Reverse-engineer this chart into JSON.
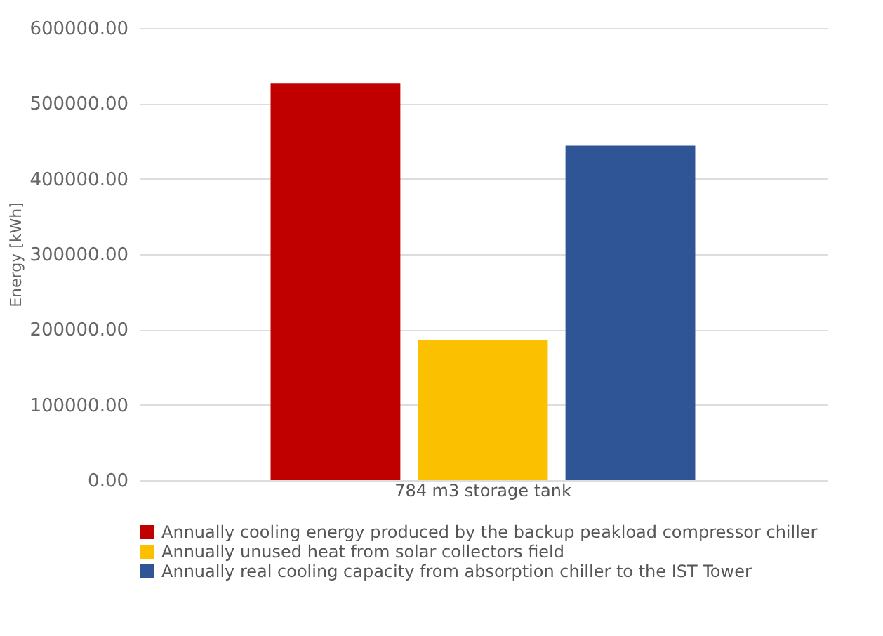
{
  "chart_data": {
    "type": "bar",
    "ylabel": "Energy [kWh]",
    "categories": [
      "784 m3 storage tank"
    ],
    "series": [
      {
        "name": "Annually cooling energy produced by the backup peakload compressor chiller",
        "color": "#c00000",
        "values": [
          527000
        ]
      },
      {
        "name": "Annually unused heat from solar collectors field",
        "color": "#fbc000",
        "values": [
          186000
        ]
      },
      {
        "name": "Annually real cooling capacity from absorption chiller to the IST Tower",
        "color": "#2f5597",
        "values": [
          444000
        ]
      }
    ],
    "ylim": [
      0,
      600000
    ],
    "yticks": [
      {
        "value": 0,
        "label": "0.00"
      },
      {
        "value": 100000,
        "label": "100000.00"
      },
      {
        "value": 200000,
        "label": "200000.00"
      },
      {
        "value": 300000,
        "label": "300000.00"
      },
      {
        "value": 400000,
        "label": "400000.00"
      },
      {
        "value": 500000,
        "label": "500000.00"
      },
      {
        "value": 600000,
        "label": "600000.00"
      }
    ],
    "grid": "y",
    "legend": "bottom"
  }
}
